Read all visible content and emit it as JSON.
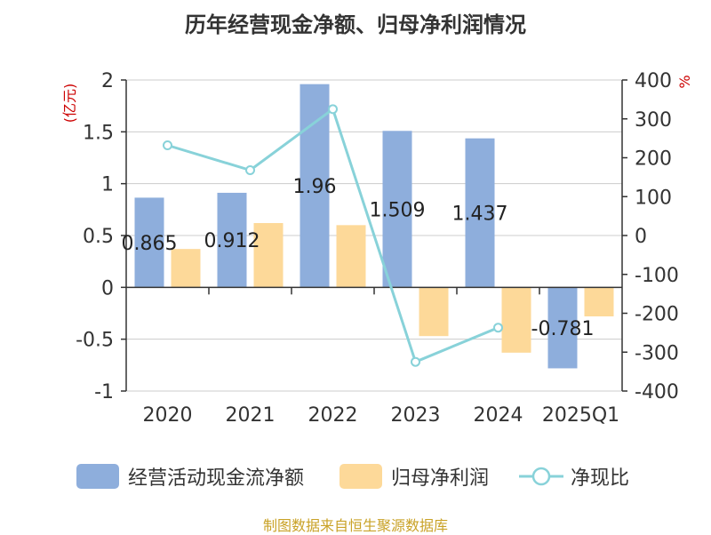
{
  "chart_data": {
    "type": "bar",
    "title": "历年经营现金净额、归母净利润情况",
    "categories": [
      "2020",
      "2021",
      "2022",
      "2023",
      "2024",
      "2025Q1"
    ],
    "left_axis_label": "(亿元)",
    "right_axis_label": "%",
    "left_axis": {
      "min": -1,
      "max": 2,
      "ticks": [
        "-1",
        "-0.5",
        "0",
        "0.5",
        "1",
        "1.5",
        "2"
      ]
    },
    "right_axis": {
      "min": -400,
      "max": 400,
      "ticks": [
        "-400",
        "-300",
        "-200",
        "-100",
        "0",
        "100",
        "200",
        "300",
        "400"
      ]
    },
    "grid": true,
    "legend_position": "bottom",
    "series": [
      {
        "name": "经营活动现金流净额",
        "type": "bar",
        "axis": "left",
        "color": "#8eaedc",
        "values": [
          0.865,
          0.912,
          1.96,
          1.509,
          1.437,
          -0.781
        ],
        "labels": [
          "0.865",
          "0.912",
          "1.96",
          "1.509",
          "1.437",
          "-0.781"
        ]
      },
      {
        "name": "归母净利润",
        "type": "bar",
        "axis": "left",
        "color": "#fdd999",
        "values": [
          0.37,
          0.62,
          0.6,
          -0.47,
          -0.63,
          -0.28
        ]
      },
      {
        "name": "净现比",
        "type": "line",
        "axis": "right",
        "color": "#88d2d9",
        "values": [
          232,
          168,
          325,
          -325,
          -237,
          null
        ]
      }
    ],
    "source": "制图数据来自恒生聚源数据库"
  }
}
